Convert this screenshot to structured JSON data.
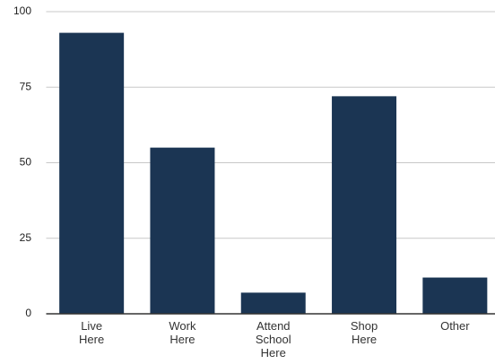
{
  "chart_data": {
    "type": "bar",
    "categories": [
      "Live Here",
      "Work Here",
      "Attend School Here",
      "Shop Here",
      "Other"
    ],
    "values": [
      93,
      55,
      7,
      72,
      12
    ],
    "color": "#1b3553",
    "ylim": [
      0,
      100
    ],
    "yticks": [
      0,
      25,
      50,
      75,
      100
    ],
    "grid": true
  }
}
